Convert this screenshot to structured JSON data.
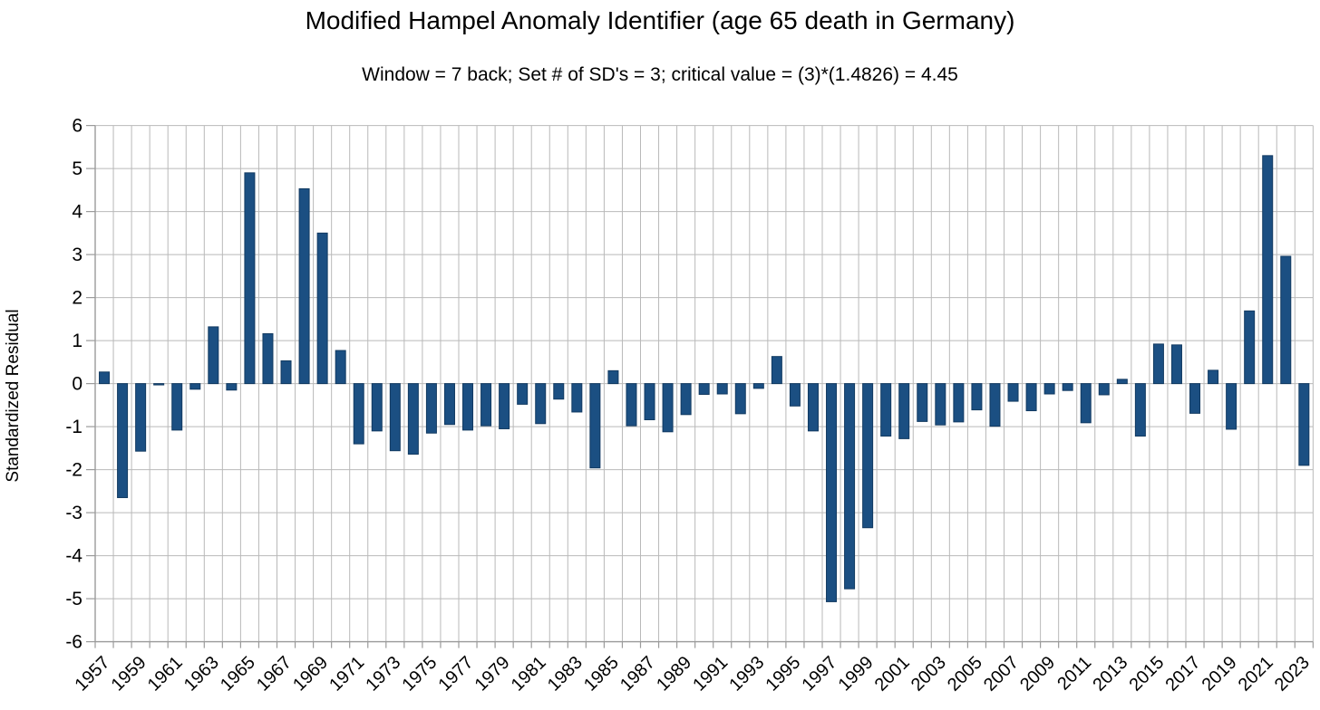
{
  "page": {
    "background": "#ffffff"
  },
  "chart_data": {
    "type": "bar",
    "title": "Modified Hampel Anomaly Identifier (age 65 death in Germany)",
    "subtitle": "Window = 7 back; Set # of SD's = 3; critical value = (3)*(1.4826) = 4.45",
    "xlabel": "",
    "ylabel": "Standardized Residual",
    "ylim": [
      -6,
      6
    ],
    "ytick_step": 1,
    "grid": true,
    "legend": "none",
    "bar_color": "#1b4f82",
    "bar_edge_color": "#123a61",
    "grid_color": "#b9b9b9",
    "axis_color": "#9b9b9b",
    "text_color": "#000000",
    "categories": [
      1957,
      1958,
      1959,
      1960,
      1961,
      1962,
      1963,
      1964,
      1965,
      1966,
      1967,
      1968,
      1969,
      1970,
      1971,
      1972,
      1973,
      1974,
      1975,
      1976,
      1977,
      1978,
      1979,
      1980,
      1981,
      1982,
      1983,
      1984,
      1985,
      1986,
      1987,
      1988,
      1989,
      1990,
      1991,
      1992,
      1993,
      1994,
      1995,
      1996,
      1997,
      1998,
      1999,
      2000,
      2001,
      2002,
      2003,
      2004,
      2005,
      2006,
      2007,
      2008,
      2009,
      2010,
      2011,
      2012,
      2013,
      2014,
      2015,
      2016,
      2017,
      2018,
      2019,
      2020,
      2021,
      2022,
      2023
    ],
    "values": [
      0.27,
      -2.65,
      -1.57,
      -0.03,
      -1.08,
      -0.13,
      1.32,
      -0.15,
      4.9,
      1.16,
      0.53,
      4.53,
      3.5,
      0.77,
      -1.4,
      -1.1,
      -1.56,
      -1.64,
      -1.15,
      -0.95,
      -1.08,
      -0.98,
      -1.05,
      -0.48,
      -0.93,
      -0.36,
      -0.66,
      -1.96,
      0.3,
      -0.98,
      -0.84,
      -1.12,
      -0.72,
      -0.25,
      -0.24,
      -0.7,
      -0.11,
      0.63,
      -0.52,
      -1.1,
      -5.07,
      -4.77,
      -3.35,
      -1.22,
      -1.28,
      -0.88,
      -0.96,
      -0.89,
      -0.61,
      -0.99,
      -0.41,
      -0.63,
      -0.24,
      -0.16,
      -0.91,
      -0.26,
      0.1,
      -1.22,
      0.92,
      0.9,
      -0.69,
      0.31,
      -1.06,
      1.69,
      5.3,
      2.96,
      -1.9
    ],
    "xtick_labels": [
      "1957",
      "1959",
      "1961",
      "1963",
      "1965",
      "1967",
      "1969",
      "1971",
      "1973",
      "1975",
      "1977",
      "1979",
      "1981",
      "1983",
      "1985",
      "1987",
      "1989",
      "1991",
      "1993",
      "1995",
      "1997",
      "1999",
      "2001",
      "2003",
      "2005",
      "2007",
      "2009",
      "2011",
      "2013",
      "2015",
      "2017",
      "2019",
      "2021",
      "2023"
    ],
    "xtick_every": 2
  }
}
